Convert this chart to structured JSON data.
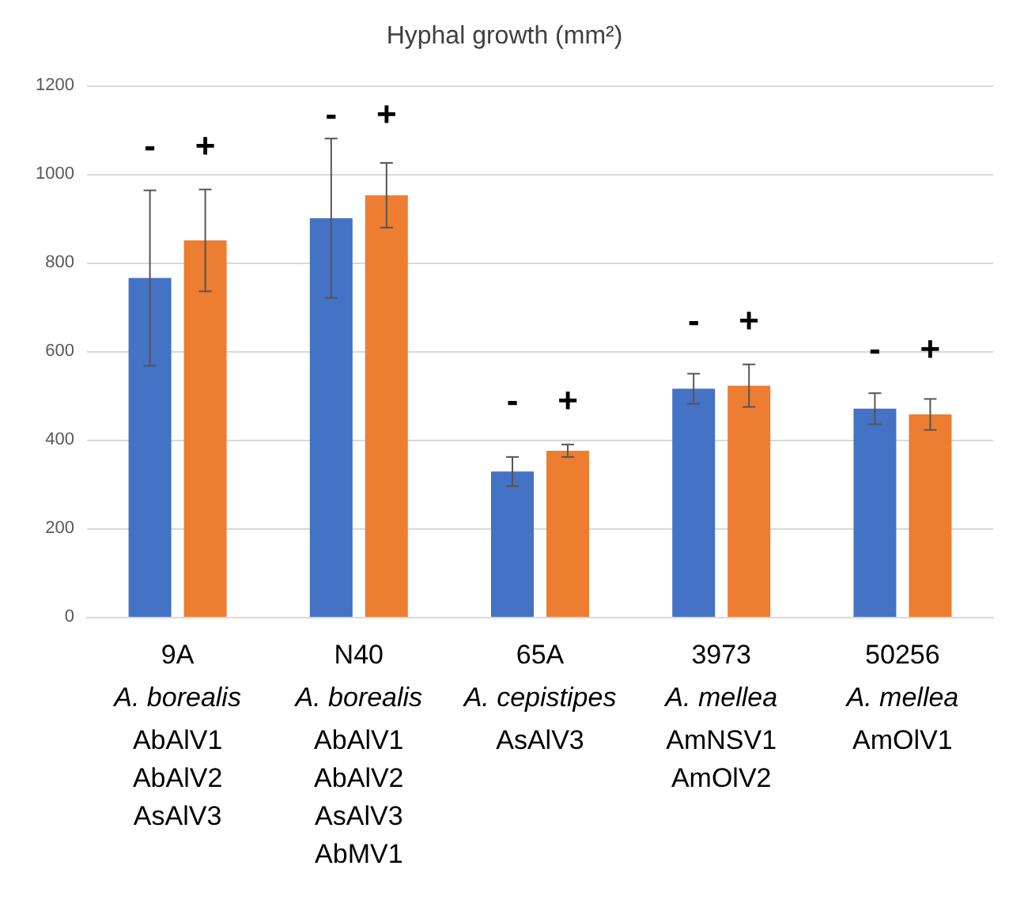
{
  "chart_data": {
    "type": "bar",
    "title": "Hyphal growth (mm²)",
    "categories": [
      "9A\nA. borealis\nAbAlV1\nAbAlV2\nAsAlV3",
      "N40\nA. borealis\nAbAlV1\nAbAlV2\nAsAlV3\nAbMV1",
      "65A\nA. cepistipes\nAsAlV3",
      "3973\nA. mellea\nAmNSV1\nAmOlV2",
      "50256\nA. mellea\nAmOlV1"
    ],
    "series": [
      {
        "color": "#4472c4",
        "values": [
          765,
          900,
          328,
          515,
          470
        ],
        "errors": [
          198,
          180,
          33,
          34,
          35
        ]
      },
      {
        "color": "#ed7d31",
        "values": [
          850,
          952,
          375,
          522,
          457
        ],
        "errors": [
          115,
          73,
          14,
          48,
          35
        ]
      }
    ],
    "annotations": [
      "-",
      "+",
      "-",
      "+",
      "-",
      "+",
      "-",
      "+",
      "-",
      "+"
    ],
    "ylim": [
      0,
      1200
    ],
    "yticks": [
      0,
      200,
      400,
      600,
      800,
      1000,
      1200
    ],
    "grid": "y"
  }
}
